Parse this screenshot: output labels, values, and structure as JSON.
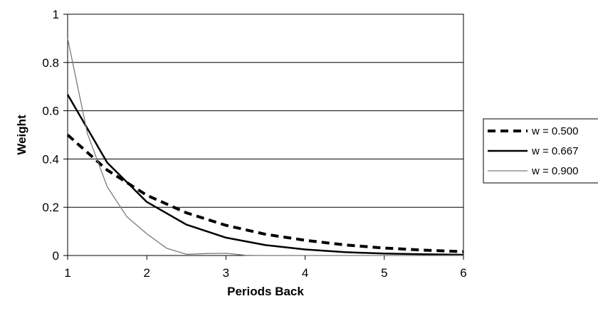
{
  "chart_data": {
    "type": "line",
    "title": "",
    "xlabel": "Periods Back",
    "ylabel": "Weight",
    "xlim": [
      1,
      6
    ],
    "ylim": [
      0,
      1
    ],
    "xticks": [
      1,
      2,
      3,
      4,
      5,
      6
    ],
    "yticks": [
      0,
      0.2,
      0.4,
      0.6,
      0.8,
      1
    ],
    "ytick_labels": [
      "0",
      "0.2",
      "0.4",
      "0.6",
      "0.8",
      "1"
    ],
    "grid": "horizontal",
    "legend_position": "right",
    "series": [
      {
        "name": "w = 0.500",
        "color": "#000000",
        "style": "dashed-thick",
        "x": [
          1,
          1.5,
          2,
          2.5,
          3,
          3.5,
          4,
          4.5,
          5,
          5.5,
          6
        ],
        "y": [
          0.5,
          0.354,
          0.25,
          0.177,
          0.125,
          0.088,
          0.063,
          0.044,
          0.031,
          0.022,
          0.016
        ]
      },
      {
        "name": "w = 0.667",
        "color": "#000000",
        "style": "solid",
        "x": [
          1,
          1.5,
          2,
          2.5,
          3,
          3.5,
          4,
          4.5,
          5,
          5.5,
          6
        ],
        "y": [
          0.667,
          0.385,
          0.222,
          0.128,
          0.074,
          0.043,
          0.025,
          0.014,
          0.008,
          0.005,
          0.003
        ]
      },
      {
        "name": "w = 0.900",
        "color": "#7a7a7a",
        "style": "thin",
        "x": [
          1,
          1.25,
          1.5,
          1.75,
          2,
          2.25,
          2.5,
          2.75,
          3,
          3.25,
          3.5,
          4,
          4.5,
          5,
          5.5,
          6
        ],
        "y": [
          0.9,
          0.505,
          0.285,
          0.16,
          0.09,
          0.03,
          0.005,
          0.008,
          0.009,
          0.001,
          0.0,
          0.0,
          0.0,
          0.0,
          0.0,
          0.0
        ]
      }
    ]
  }
}
